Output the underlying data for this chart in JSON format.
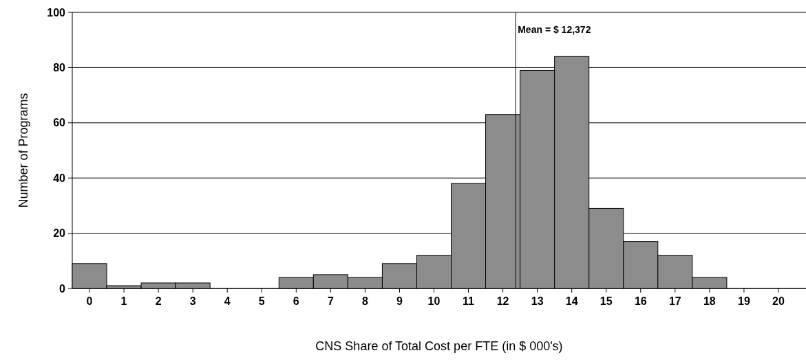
{
  "chart_data": {
    "type": "histogram",
    "xlabel": "CNS Share of Total Cost per FTE (in $ 000's)",
    "ylabel": "Number of Programs",
    "bins": [
      -0.5,
      0.5,
      1.5,
      2.5,
      3.5,
      4.5,
      5.5,
      6.5,
      7.5,
      8.5,
      9.5,
      10.5,
      11.5,
      12.5,
      13.5,
      14.5,
      15.5,
      16.5,
      17.5,
      18.5,
      19.5,
      20.5
    ],
    "values": [
      9,
      1,
      2,
      2,
      0,
      0,
      4,
      5,
      4,
      9,
      12,
      38,
      63,
      79,
      84,
      29,
      17,
      12,
      4,
      0,
      0
    ],
    "color": "#8c8c8c",
    "xlim": [
      -0.5,
      20.8
    ],
    "xticks": [
      0,
      1,
      2,
      3,
      4,
      5,
      6,
      7,
      8,
      9,
      10,
      11,
      12,
      13,
      14,
      15,
      16,
      17,
      18,
      19,
      20
    ],
    "ylim": [
      0,
      100
    ],
    "yticks": [
      0,
      20,
      40,
      60,
      80,
      100
    ],
    "grid": "y",
    "ref_lines": [
      {
        "axis": "x",
        "value": 12.372,
        "label": "Mean = $ 12,372",
        "color": "#000000"
      }
    ]
  }
}
